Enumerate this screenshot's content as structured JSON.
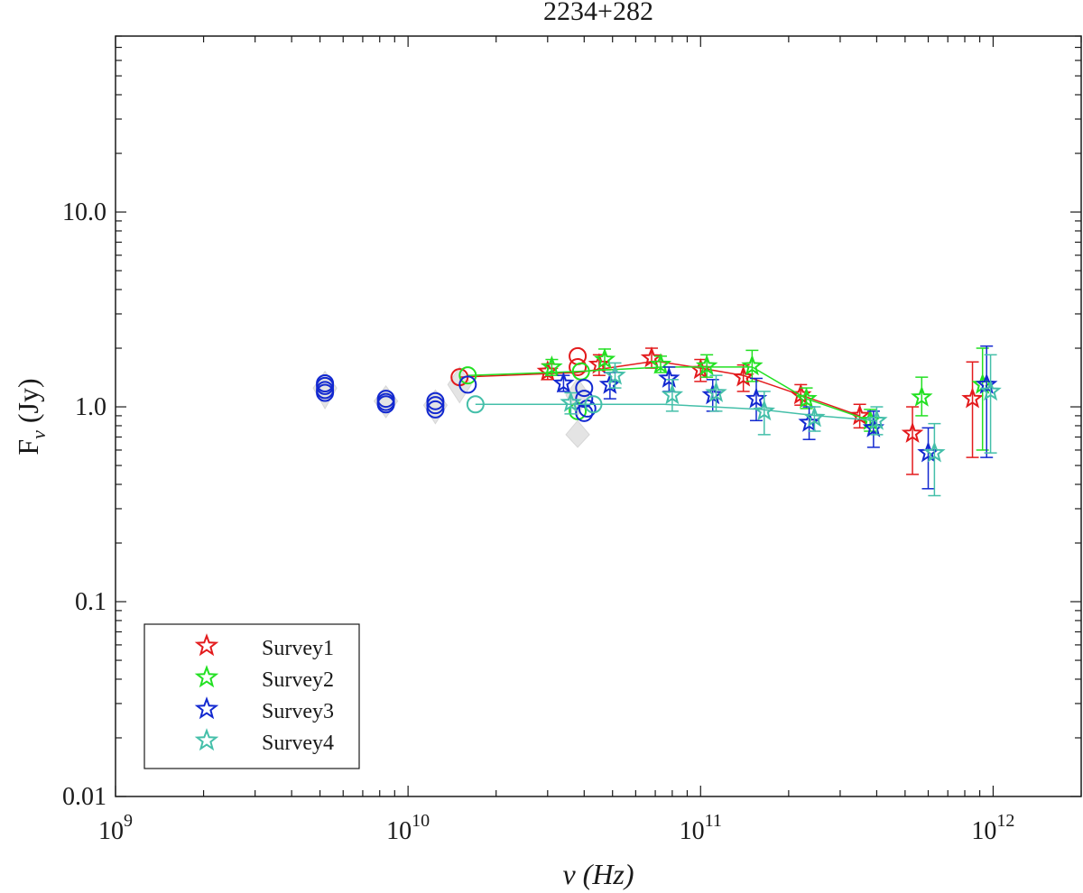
{
  "chart_data": {
    "type": "scatter",
    "title": "2234+282",
    "xlabel": "ν (Hz)",
    "ylabel": "Fν (Jy)",
    "xscale": "log",
    "yscale": "log",
    "xlim": [
      1000000000.0,
      2000000000000.0
    ],
    "ylim": [
      0.01,
      80
    ],
    "x_ticks": [
      {
        "value": 1000000000.0,
        "base": "10",
        "exp": "9"
      },
      {
        "value": 10000000000.0,
        "base": "10",
        "exp": "10"
      },
      {
        "value": 100000000000.0,
        "base": "10",
        "exp": "11"
      },
      {
        "value": 1000000000000.0,
        "base": "10",
        "exp": "12"
      }
    ],
    "y_ticks": [
      {
        "value": 0.01,
        "label": "0.01"
      },
      {
        "value": 0.1,
        "label": "0.1"
      },
      {
        "value": 1,
        "label": "1.0"
      },
      {
        "value": 10,
        "label": "10.0"
      }
    ],
    "legend": {
      "position": "bottom-left",
      "entries": [
        "Survey1",
        "Survey2",
        "Survey3",
        "Survey4"
      ]
    },
    "series": [
      {
        "name": "Survey1",
        "color": "#e31a1c",
        "line": [
          [
            15000000000.0,
            1.42
          ],
          [
            38000000000.0,
            1.5
          ],
          [
            70000000000.0,
            1.72
          ],
          [
            100000000000.0,
            1.58
          ],
          [
            140000000000.0,
            1.45
          ],
          [
            220000000000.0,
            1.15
          ],
          [
            350000000000.0,
            0.9
          ]
        ],
        "stars": [
          {
            "x": 30000000000.0,
            "y": 1.52,
            "lo": 1.38,
            "hi": 1.66
          },
          {
            "x": 45000000000.0,
            "y": 1.65,
            "lo": 1.45,
            "hi": 1.85
          },
          {
            "x": 68000000000.0,
            "y": 1.78,
            "lo": 1.58,
            "hi": 2.0
          },
          {
            "x": 100000000000.0,
            "y": 1.55,
            "lo": 1.35,
            "hi": 1.75
          },
          {
            "x": 140000000000.0,
            "y": 1.42,
            "lo": 1.2,
            "hi": 1.64
          },
          {
            "x": 220000000000.0,
            "y": 1.15,
            "lo": 1.02,
            "hi": 1.3
          },
          {
            "x": 350000000000.0,
            "y": 0.9,
            "lo": 0.78,
            "hi": 1.03
          },
          {
            "x": 530000000000.0,
            "y": 0.73,
            "lo": 0.45,
            "hi": 1.0
          },
          {
            "x": 850000000000.0,
            "y": 1.1,
            "lo": 0.55,
            "hi": 1.7
          }
        ],
        "circles": [
          {
            "x": 15000000000.0,
            "y": 1.42
          },
          {
            "x": 38000000000.0,
            "y": 1.82
          },
          {
            "x": 38000000000.0,
            "y": 1.6
          }
        ]
      },
      {
        "name": "Survey2",
        "color": "#22e022",
        "line": [
          [
            16000000000.0,
            1.45
          ],
          [
            38000000000.0,
            1.52
          ],
          [
            75000000000.0,
            1.6
          ],
          [
            100000000000.0,
            1.6
          ],
          [
            150000000000.0,
            1.6
          ],
          [
            230000000000.0,
            1.1
          ],
          [
            380000000000.0,
            0.85
          ]
        ],
        "stars": [
          {
            "x": 31000000000.0,
            "y": 1.6,
            "lo": 1.45,
            "hi": 1.75
          },
          {
            "x": 47000000000.0,
            "y": 1.75,
            "lo": 1.55,
            "hi": 1.98
          },
          {
            "x": 73000000000.0,
            "y": 1.65,
            "lo": 1.5,
            "hi": 1.82
          },
          {
            "x": 105000000000.0,
            "y": 1.62,
            "lo": 1.42,
            "hi": 1.85
          },
          {
            "x": 150000000000.0,
            "y": 1.62,
            "lo": 1.35,
            "hi": 1.95
          },
          {
            "x": 230000000000.0,
            "y": 1.1,
            "lo": 0.98,
            "hi": 1.25
          },
          {
            "x": 380000000000.0,
            "y": 0.85,
            "lo": 0.75,
            "hi": 0.97
          },
          {
            "x": 570000000000.0,
            "y": 1.12,
            "lo": 0.9,
            "hi": 1.42
          },
          {
            "x": 920000000000.0,
            "y": 1.3,
            "lo": 0.6,
            "hi": 2.0
          }
        ],
        "circles": [
          {
            "x": 16000000000.0,
            "y": 1.45
          },
          {
            "x": 39000000000.0,
            "y": 1.52
          },
          {
            "x": 38000000000.0,
            "y": 0.95
          }
        ]
      },
      {
        "name": "Survey3",
        "color": "#1228d0",
        "line": [],
        "stars": [
          {
            "x": 34000000000.0,
            "y": 1.32,
            "lo": 1.2,
            "hi": 1.45
          },
          {
            "x": 49000000000.0,
            "y": 1.3,
            "lo": 1.1,
            "hi": 1.5
          },
          {
            "x": 78000000000.0,
            "y": 1.4,
            "lo": 1.2,
            "hi": 1.6
          },
          {
            "x": 110000000000.0,
            "y": 1.15,
            "lo": 0.95,
            "hi": 1.38
          },
          {
            "x": 155000000000.0,
            "y": 1.1,
            "lo": 0.85,
            "hi": 1.4
          },
          {
            "x": 235000000000.0,
            "y": 0.83,
            "lo": 0.68,
            "hi": 1.0
          },
          {
            "x": 390000000000.0,
            "y": 0.78,
            "lo": 0.62,
            "hi": 0.95
          },
          {
            "x": 600000000000.0,
            "y": 0.58,
            "lo": 0.38,
            "hi": 0.78
          },
          {
            "x": 950000000000.0,
            "y": 1.3,
            "lo": 0.55,
            "hi": 2.05
          }
        ],
        "circles": [
          {
            "x": 5200000000.0,
            "y": 1.32
          },
          {
            "x": 5200000000.0,
            "y": 1.28
          },
          {
            "x": 5200000000.0,
            "y": 1.22
          },
          {
            "x": 5200000000.0,
            "y": 1.18
          },
          {
            "x": 8400000000.0,
            "y": 1.1
          },
          {
            "x": 8400000000.0,
            "y": 1.06
          },
          {
            "x": 8400000000.0,
            "y": 1.03
          },
          {
            "x": 12400000000.0,
            "y": 1.07
          },
          {
            "x": 12400000000.0,
            "y": 1.02
          },
          {
            "x": 12400000000.0,
            "y": 0.97
          },
          {
            "x": 16000000000.0,
            "y": 1.3
          },
          {
            "x": 40000000000.0,
            "y": 1.25
          },
          {
            "x": 40000000000.0,
            "y": 1.1
          },
          {
            "x": 41000000000.0,
            "y": 0.98
          },
          {
            "x": 40000000000.0,
            "y": 0.93
          }
        ]
      },
      {
        "name": "Survey4",
        "color": "#44bfa9",
        "line": [
          [
            17000000000.0,
            1.03
          ],
          [
            43000000000.0,
            1.03
          ],
          [
            75000000000.0,
            1.03
          ],
          [
            110000000000.0,
            1.0
          ],
          [
            160000000000.0,
            0.97
          ],
          [
            250000000000.0,
            0.9
          ],
          [
            400000000000.0,
            0.85
          ]
        ],
        "stars": [
          {
            "x": 36000000000.0,
            "y": 1.05,
            "lo": 0.92,
            "hi": 1.18
          },
          {
            "x": 51000000000.0,
            "y": 1.45,
            "lo": 1.25,
            "hi": 1.68
          },
          {
            "x": 80000000000.0,
            "y": 1.15,
            "lo": 0.95,
            "hi": 1.38
          },
          {
            "x": 113000000000.0,
            "y": 1.18,
            "lo": 0.95,
            "hi": 1.45
          },
          {
            "x": 165000000000.0,
            "y": 0.95,
            "lo": 0.72,
            "hi": 1.2
          },
          {
            "x": 245000000000.0,
            "y": 0.88,
            "lo": 0.75,
            "hi": 1.0
          },
          {
            "x": 400000000000.0,
            "y": 0.85,
            "lo": 0.72,
            "hi": 1.0
          },
          {
            "x": 630000000000.0,
            "y": 0.58,
            "lo": 0.35,
            "hi": 0.82
          },
          {
            "x": 980000000000.0,
            "y": 1.2,
            "lo": 0.58,
            "hi": 1.85
          }
        ],
        "circles": [
          {
            "x": 17000000000.0,
            "y": 1.03
          },
          {
            "x": 43000000000.0,
            "y": 1.03
          }
        ]
      }
    ],
    "background_points": [
      {
        "x": 5200000000.0,
        "y": 1.25,
        "lo": 0.98,
        "hi": 1.52
      },
      {
        "x": 8400000000.0,
        "y": 1.07,
        "lo": 0.88,
        "hi": 1.28
      },
      {
        "x": 12400000000.0,
        "y": 1.02,
        "lo": 0.82,
        "hi": 1.22
      },
      {
        "x": 15000000000.0,
        "y": 1.3,
        "lo": 1.05,
        "hi": 1.6
      },
      {
        "x": 38000000000.0,
        "y": 0.72,
        "lo": 0.62,
        "hi": 0.85
      },
      {
        "x": 38000000000.0,
        "y": 1.15,
        "lo": 0.9,
        "hi": 1.4
      }
    ]
  }
}
